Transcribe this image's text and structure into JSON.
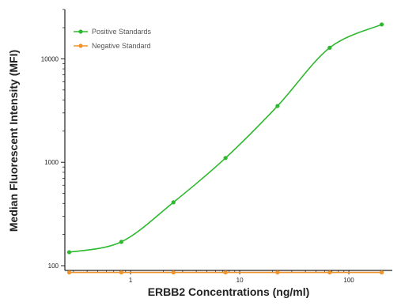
{
  "chart_data": {
    "type": "scatter",
    "xlabel": "ERBB2 Concentrations (ng/ml)",
    "ylabel": "Median Fluorescent Intensity (MFI)",
    "x_scale": "log",
    "y_scale": "log",
    "xlim": [
      0.25,
      250
    ],
    "ylim": [
      90,
      30000
    ],
    "x_ticks": [
      1,
      10,
      100
    ],
    "x_tick_labels": [
      "1",
      "10",
      "100"
    ],
    "y_ticks": [
      100,
      1000,
      10000
    ],
    "y_tick_labels": [
      "100",
      "1000",
      "10000"
    ],
    "grid": false,
    "legend": "top-left",
    "series": [
      {
        "name": "Positive Standards",
        "color": "#2eb82e",
        "marker": "circle",
        "fit_curve": true,
        "x": [
          0.274,
          0.823,
          2.47,
          7.41,
          22.2,
          66.7,
          200
        ],
        "y": [
          135,
          170,
          410,
          1100,
          3500,
          12800,
          21500
        ]
      },
      {
        "name": "Negative Standard",
        "color": "#f0932b",
        "marker": "circle",
        "fit_curve": false,
        "x": [
          0.274,
          0.823,
          2.47,
          7.41,
          22.2,
          66.7,
          200
        ],
        "y": [
          86,
          86,
          86,
          86,
          86,
          86,
          86
        ]
      }
    ]
  }
}
